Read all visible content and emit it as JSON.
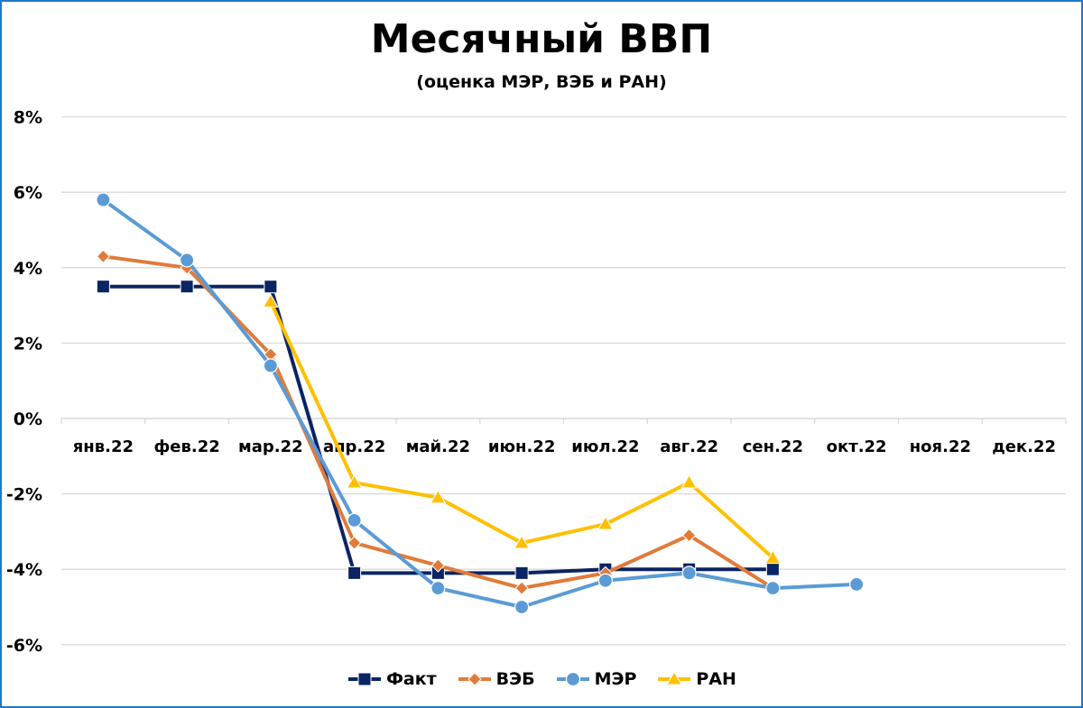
{
  "title": "Месячный ВВП",
  "subtitle": "(оценка МЭР, ВЭБ и РАН)",
  "colors": {
    "border": "#1f78c8",
    "grid": "#d9d9d9",
    "fact": "#0b2463",
    "veb": "#e07b39",
    "mer": "#5b9bd5",
    "ran": "#ffc000"
  },
  "chart_data": {
    "type": "line",
    "title": "Месячный ВВП",
    "subtitle": "(оценка МЭР, ВЭБ и РАН)",
    "xlabel": "",
    "ylabel": "",
    "categories": [
      "янв.22",
      "фев.22",
      "мар.22",
      "апр.22",
      "май.22",
      "июн.22",
      "июл.22",
      "авг.22",
      "сен.22",
      "окт.22",
      "ноя.22",
      "дек.22"
    ],
    "yticks": [
      8,
      6,
      4,
      2,
      0,
      -2,
      -4,
      -6
    ],
    "ytick_labels": [
      "8%",
      "6%",
      "4%",
      "2%",
      "0%",
      "-2%",
      "-4%",
      "-6%"
    ],
    "ylim": [
      -7,
      8
    ],
    "grid": true,
    "legend_position": "bottom",
    "unit": "%",
    "series": [
      {
        "name": "Факт",
        "marker": "square",
        "color": "#0b2463",
        "values": [
          3.5,
          3.5,
          3.5,
          -4.1,
          -4.1,
          -4.1,
          -4.0,
          -4.0,
          -4.0,
          null,
          null,
          null
        ]
      },
      {
        "name": "ВЭБ",
        "marker": "diamond",
        "color": "#e07b39",
        "values": [
          4.3,
          4.0,
          1.7,
          -3.3,
          -3.9,
          -4.5,
          -4.1,
          -3.1,
          -4.5,
          null,
          null,
          null
        ]
      },
      {
        "name": "МЭР",
        "marker": "circle",
        "color": "#5b9bd5",
        "values": [
          5.8,
          4.2,
          1.4,
          -2.7,
          -4.5,
          -5.0,
          -4.3,
          -4.1,
          -4.5,
          -4.4,
          null,
          null
        ]
      },
      {
        "name": "РАН",
        "marker": "triangle",
        "color": "#ffc000",
        "values": [
          null,
          null,
          3.1,
          -1.7,
          -2.1,
          -3.3,
          -2.8,
          -1.7,
          -3.7,
          null,
          null,
          null
        ]
      }
    ]
  },
  "legend": [
    {
      "label": "Факт"
    },
    {
      "label": "ВЭБ"
    },
    {
      "label": "МЭР"
    },
    {
      "label": "РАН"
    }
  ]
}
